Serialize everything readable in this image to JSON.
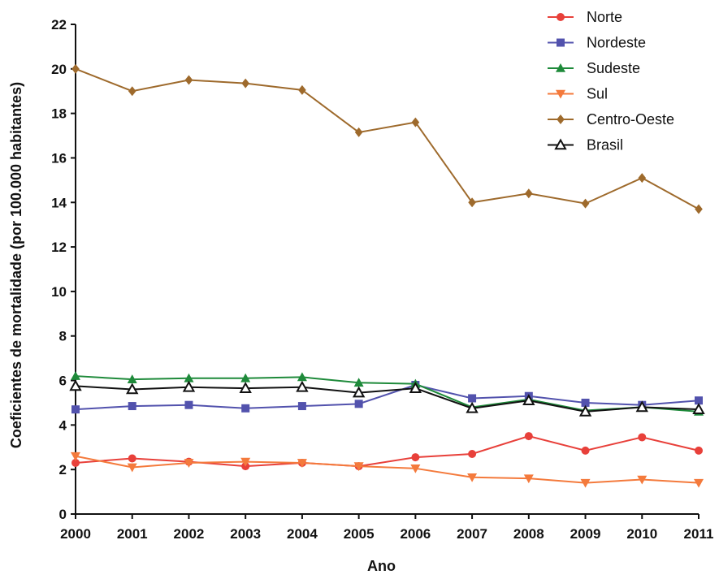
{
  "chart_data": {
    "type": "line",
    "title": "",
    "xlabel": "Ano",
    "ylabel": "Coeficientes de mortalidade (por 100.000 habitantes)",
    "x": [
      "2000",
      "2001",
      "2002",
      "2003",
      "2004",
      "2005",
      "2006",
      "2007",
      "2008",
      "2009",
      "2010",
      "2011"
    ],
    "ylim": [
      0,
      22
    ],
    "yticks": [
      "0",
      "2",
      "4",
      "6",
      "8",
      "10",
      "12",
      "14",
      "16",
      "18",
      "20",
      "22"
    ],
    "grid": false,
    "legend_position": "top-right",
    "series": [
      {
        "name": "Norte",
        "color": "#e8403a",
        "marker": "circle",
        "values": [
          2.3,
          2.5,
          2.35,
          2.15,
          2.3,
          2.15,
          2.55,
          2.7,
          3.5,
          2.85,
          3.45,
          2.85
        ]
      },
      {
        "name": "Nordeste",
        "color": "#5252ad",
        "marker": "square",
        "values": [
          4.7,
          4.85,
          4.9,
          4.75,
          4.85,
          4.95,
          5.8,
          5.2,
          5.3,
          5.0,
          4.9,
          5.1
        ]
      },
      {
        "name": "Sudeste",
        "color": "#1e8a3a",
        "marker": "triangle-up",
        "values": [
          6.2,
          6.05,
          6.1,
          6.1,
          6.15,
          5.9,
          5.85,
          4.8,
          5.15,
          4.65,
          4.8,
          4.6
        ]
      },
      {
        "name": "Sul",
        "color": "#f47a3c",
        "marker": "triangle-down",
        "values": [
          2.6,
          2.1,
          2.3,
          2.35,
          2.3,
          2.15,
          2.05,
          1.65,
          1.6,
          1.4,
          1.55,
          1.4
        ]
      },
      {
        "name": "Centro-Oeste",
        "color": "#9e6a2c",
        "marker": "diamond",
        "values": [
          20.0,
          19.0,
          19.5,
          19.35,
          19.05,
          17.15,
          17.6,
          14.0,
          14.4,
          13.95,
          15.1,
          13.7
        ]
      },
      {
        "name": "Brasil",
        "color": "#111111",
        "marker": "triangle-open",
        "values": [
          5.75,
          5.6,
          5.7,
          5.65,
          5.7,
          5.45,
          5.65,
          4.75,
          5.1,
          4.6,
          4.8,
          4.7
        ]
      }
    ]
  }
}
